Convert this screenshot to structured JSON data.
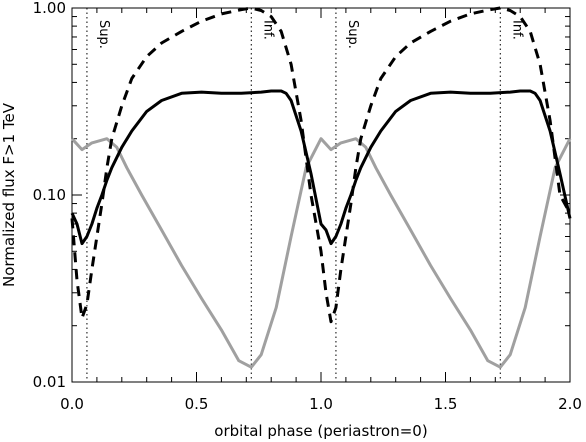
{
  "chart_data": {
    "type": "line",
    "xlabel": "orbital phase (periastron=0)",
    "ylabel": "Normalized flux F>1 TeV",
    "xlim": [
      0.0,
      2.0
    ],
    "ylim": [
      0.01,
      1.0
    ],
    "yscale": "log",
    "grid": false,
    "x_ticks": [
      {
        "value": 0.0,
        "label": "0.0"
      },
      {
        "value": 0.5,
        "label": "0.5"
      },
      {
        "value": 1.0,
        "label": "1.0"
      },
      {
        "value": 1.5,
        "label": "1.5"
      },
      {
        "value": 2.0,
        "label": "2.0"
      }
    ],
    "y_ticks": [
      {
        "value": 0.01,
        "label": "0.01"
      },
      {
        "value": 0.1,
        "label": "0.10"
      },
      {
        "value": 1.0,
        "label": "1.00"
      }
    ],
    "colors": {
      "solid": "#000000",
      "dashed": "#000000",
      "gray": "#a0a0a0"
    },
    "conjunctions": [
      {
        "x": 0.06,
        "label": "Sup."
      },
      {
        "x": 0.72,
        "label": "Inf."
      },
      {
        "x": 1.06,
        "label": "Sup."
      },
      {
        "x": 1.72,
        "label": "Inf."
      }
    ],
    "series": [
      {
        "style": "solid",
        "x": [
          0.0,
          0.02,
          0.04,
          0.06,
          0.08,
          0.1,
          0.12,
          0.14,
          0.16,
          0.2,
          0.24,
          0.3,
          0.36,
          0.44,
          0.52,
          0.6,
          0.68,
          0.76,
          0.8,
          0.84,
          0.86,
          0.88,
          0.92,
          0.96,
          1.0,
          1.02,
          1.04,
          1.06,
          1.08,
          1.1,
          1.12,
          1.14,
          1.16,
          1.2,
          1.24,
          1.3,
          1.36,
          1.44,
          1.52,
          1.6,
          1.68,
          1.76,
          1.8,
          1.84,
          1.86,
          1.88,
          1.92,
          1.96,
          2.0
        ],
        "values": [
          0.08,
          0.07,
          0.055,
          0.06,
          0.07,
          0.085,
          0.1,
          0.12,
          0.14,
          0.18,
          0.22,
          0.28,
          0.32,
          0.35,
          0.355,
          0.35,
          0.35,
          0.355,
          0.36,
          0.36,
          0.35,
          0.32,
          0.22,
          0.13,
          0.07,
          0.065,
          0.055,
          0.06,
          0.07,
          0.085,
          0.1,
          0.12,
          0.14,
          0.18,
          0.22,
          0.28,
          0.32,
          0.35,
          0.355,
          0.35,
          0.35,
          0.355,
          0.36,
          0.36,
          0.35,
          0.32,
          0.22,
          0.13,
          0.075
        ]
      },
      {
        "style": "dashed",
        "x": [
          0.0,
          0.02,
          0.04,
          0.06,
          0.08,
          0.1,
          0.12,
          0.14,
          0.16,
          0.2,
          0.24,
          0.3,
          0.36,
          0.44,
          0.52,
          0.6,
          0.68,
          0.72,
          0.76,
          0.8,
          0.84,
          0.88,
          0.92,
          0.96,
          1.0,
          1.02,
          1.04,
          1.06,
          1.08,
          1.1,
          1.12,
          1.14,
          1.16,
          1.2,
          1.24,
          1.3,
          1.36,
          1.44,
          1.52,
          1.6,
          1.68,
          1.72,
          1.76,
          1.8,
          1.84,
          1.88,
          1.92,
          1.96,
          2.0
        ],
        "values": [
          0.075,
          0.035,
          0.022,
          0.026,
          0.04,
          0.06,
          0.09,
          0.14,
          0.2,
          0.3,
          0.42,
          0.55,
          0.65,
          0.75,
          0.85,
          0.93,
          0.98,
          1.0,
          0.97,
          0.9,
          0.75,
          0.5,
          0.25,
          0.1,
          0.05,
          0.03,
          0.021,
          0.025,
          0.04,
          0.06,
          0.09,
          0.14,
          0.2,
          0.3,
          0.42,
          0.55,
          0.65,
          0.75,
          0.85,
          0.93,
          0.98,
          1.0,
          0.97,
          0.9,
          0.75,
          0.5,
          0.25,
          0.1,
          0.08
        ]
      },
      {
        "style": "gray",
        "x": [
          0.0,
          0.04,
          0.08,
          0.14,
          0.18,
          0.22,
          0.28,
          0.36,
          0.44,
          0.52,
          0.6,
          0.67,
          0.72,
          0.76,
          0.82,
          0.88,
          0.94,
          1.0,
          1.04,
          1.08,
          1.14,
          1.18,
          1.22,
          1.28,
          1.36,
          1.44,
          1.52,
          1.6,
          1.67,
          1.72,
          1.76,
          1.82,
          1.88,
          1.94,
          2.0
        ],
        "values": [
          0.2,
          0.175,
          0.19,
          0.2,
          0.18,
          0.14,
          0.1,
          0.065,
          0.042,
          0.028,
          0.019,
          0.013,
          0.012,
          0.014,
          0.025,
          0.06,
          0.14,
          0.2,
          0.175,
          0.19,
          0.2,
          0.18,
          0.14,
          0.1,
          0.065,
          0.042,
          0.028,
          0.019,
          0.013,
          0.012,
          0.014,
          0.025,
          0.06,
          0.14,
          0.2
        ]
      }
    ]
  }
}
